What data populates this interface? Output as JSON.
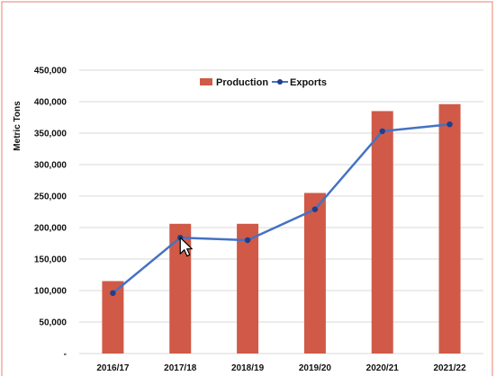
{
  "chart_data": {
    "type": "bar",
    "title": "",
    "xlabel": "",
    "ylabel": "Metric Tons",
    "categories": [
      "2016/17",
      "2017/18",
      "2018/19",
      "2019/20",
      "2020/21",
      "2021/22"
    ],
    "series": [
      {
        "name": "Production",
        "type": "bar",
        "color": "#d05a47",
        "values": [
          115000,
          206000,
          206000,
          255000,
          385000,
          396000
        ]
      },
      {
        "name": "Exports",
        "type": "line",
        "color": "#4472c4",
        "marker_color": "#1f3f8a",
        "values": [
          96000,
          184000,
          180000,
          229000,
          353000,
          364000
        ]
      }
    ],
    "ylim": [
      0,
      450000
    ],
    "yticks": [
      0,
      50000,
      100000,
      150000,
      200000,
      250000,
      300000,
      350000,
      400000,
      450000
    ],
    "ytick_labels": [
      "-",
      "50,000",
      "100,000",
      "150,000",
      "200,000",
      "250,000",
      "300,000",
      "350,000",
      "400,000",
      "450,000"
    ],
    "grid": true,
    "legend_position": "top-center",
    "frame_color": "#e8806f",
    "grid_color": "#d9d9d9"
  },
  "cursor": {
    "icon": "mouse-pointer-icon",
    "category": "2017/18",
    "value": 184000
  }
}
